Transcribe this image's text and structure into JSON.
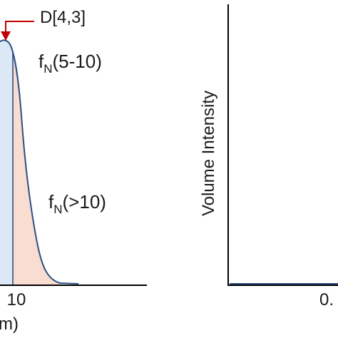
{
  "chart_data": [
    {
      "type": "area",
      "xlabel": "m)",
      "ticks": [
        {
          "value": 10,
          "label": "10"
        }
      ],
      "marker": {
        "label": "D[4,3]",
        "color": "#c00000"
      },
      "annotations": [
        {
          "main": "f",
          "sub": "N",
          "tail": "(5-10)"
        },
        {
          "main": "f",
          "sub": "N",
          "tail": "(>10)"
        }
      ],
      "regions": [
        {
          "name": "5-10",
          "fill": "#dbe8f5"
        },
        {
          "name": ">10",
          "fill": "#f8ddd0"
        }
      ],
      "curve_color": "#2f4f86"
    },
    {
      "type": "line",
      "ylabel": "Volume Intensity",
      "ticks": [
        {
          "label": "0."
        }
      ],
      "curve_color": "#2f4f86"
    }
  ]
}
